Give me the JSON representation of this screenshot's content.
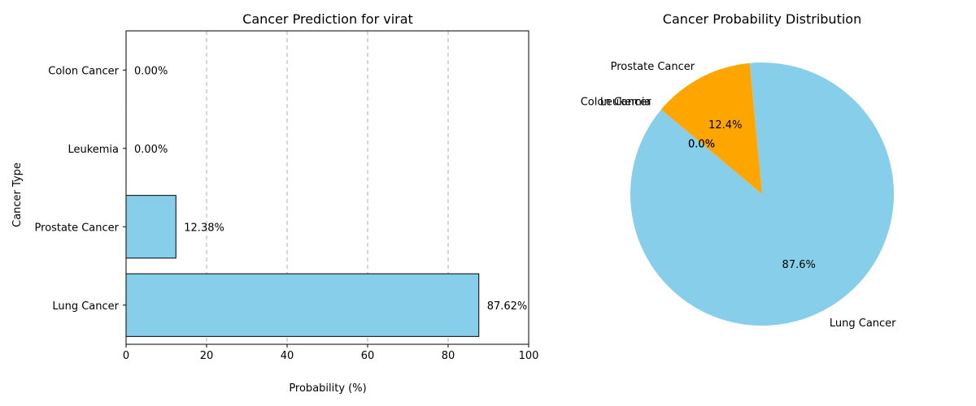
{
  "chart_data": [
    {
      "type": "bar",
      "orientation": "horizontal",
      "title": "Cancer Prediction for virat",
      "xlabel": "Probability (%)",
      "ylabel": "Cancer Type",
      "categories": [
        "Lung Cancer",
        "Prostate Cancer",
        "Leukemia",
        "Colon Cancer"
      ],
      "values": [
        87.62,
        12.38,
        0.0,
        0.0
      ],
      "data_labels": [
        "87.62%",
        "12.38%",
        "0.00%",
        "0.00%"
      ],
      "xlim": [
        0,
        100
      ],
      "xticks": [
        0,
        20,
        40,
        60,
        80,
        100
      ],
      "xtick_labels": [
        "0",
        "20",
        "40",
        "60",
        "80",
        "100"
      ],
      "grid": "x-dashed",
      "bar_color": "#87CEEB"
    },
    {
      "type": "pie",
      "title": "Cancer Probability Distribution",
      "labels": [
        "Lung Cancer",
        "Prostate Cancer",
        "Leukemia",
        "Colon Cancer"
      ],
      "values": [
        87.62,
        12.38,
        0.0,
        0.0
      ],
      "pct_labels": [
        "87.6%",
        "12.4%",
        "0.0%",
        "0.0%"
      ],
      "colors": [
        "#87CEEB",
        "#FFA500",
        "#90EE90",
        "#FF6347"
      ]
    }
  ]
}
